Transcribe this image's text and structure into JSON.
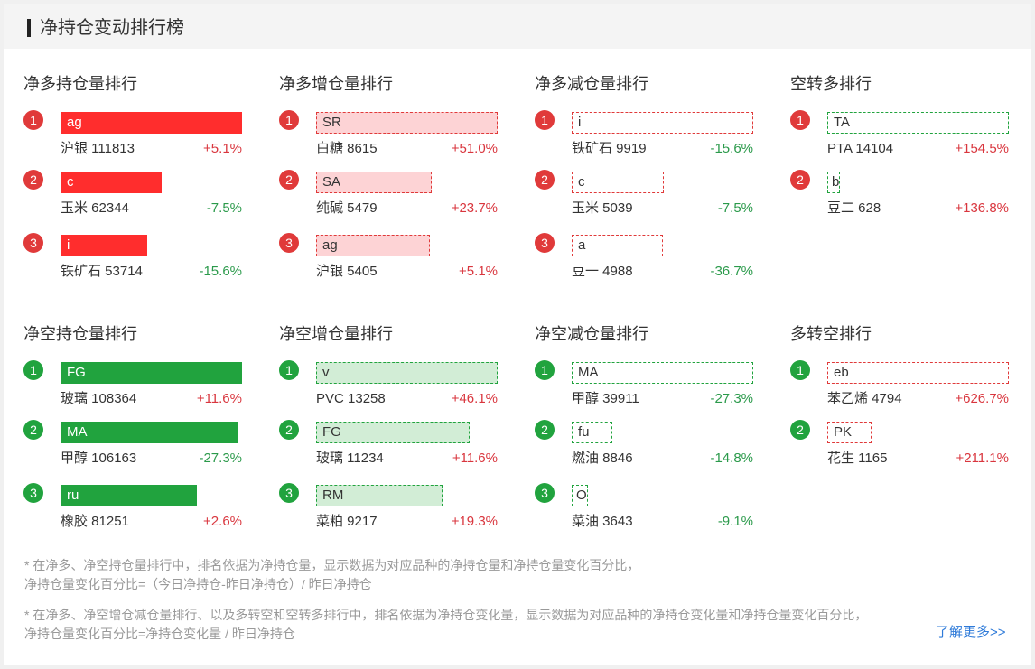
{
  "panel": {
    "title": "净持仓变动排行榜"
  },
  "colors": {
    "up": "#d9363e",
    "down": "#2b9a4b",
    "red_solid": "#ff2d2d",
    "green_solid": "#21a33e",
    "link": "#2f7bd9"
  },
  "sections": [
    {
      "title": "净多持仓量排行",
      "style": "solid-red",
      "badge": "red",
      "items": [
        {
          "rank": "1",
          "code": "ag",
          "name": "沪银 111813",
          "pct": "+5.1%",
          "dir": "pos",
          "bar_ratio": 1.0
        },
        {
          "rank": "2",
          "code": "c",
          "name": "玉米 62344",
          "pct": "-7.5%",
          "dir": "neg",
          "bar_ratio": 0.558
        },
        {
          "rank": "3",
          "code": "i",
          "name": "铁矿石 53714",
          "pct": "-15.6%",
          "dir": "neg",
          "bar_ratio": 0.48
        }
      ]
    },
    {
      "title": "净多增仓量排行",
      "style": "light-red",
      "badge": "red",
      "items": [
        {
          "rank": "1",
          "code": "SR",
          "name": "白糖 8615",
          "pct": "+51.0%",
          "dir": "pos",
          "bar_ratio": 1.0
        },
        {
          "rank": "2",
          "code": "SA",
          "name": "纯碱 5479",
          "pct": "+23.7%",
          "dir": "pos",
          "bar_ratio": 0.636
        },
        {
          "rank": "3",
          "code": "ag",
          "name": "沪银 5405",
          "pct": "+5.1%",
          "dir": "pos",
          "bar_ratio": 0.627
        }
      ]
    },
    {
      "title": "净多减仓量排行",
      "style": "dash-red",
      "badge": "red",
      "items": [
        {
          "rank": "1",
          "code": "i",
          "name": "铁矿石 9919",
          "pct": "-15.6%",
          "dir": "neg",
          "bar_ratio": 1.0
        },
        {
          "rank": "2",
          "code": "c",
          "name": "玉米 5039",
          "pct": "-7.5%",
          "dir": "neg",
          "bar_ratio": 0.508
        },
        {
          "rank": "3",
          "code": "a",
          "name": "豆一 4988",
          "pct": "-36.7%",
          "dir": "neg",
          "bar_ratio": 0.503
        }
      ]
    },
    {
      "title": "空转多排行",
      "style": "dash-green",
      "badge": "red",
      "items": [
        {
          "rank": "1",
          "code": "TA",
          "name": "PTA 14104",
          "pct": "+154.5%",
          "dir": "pos",
          "bar_ratio": 1.0
        },
        {
          "rank": "2",
          "code": "b",
          "name": "豆二 628",
          "pct": "+136.8%",
          "dir": "pos",
          "bar_ratio": 0.045
        }
      ]
    },
    {
      "title": "净空持仓量排行",
      "style": "solid-green",
      "badge": "green",
      "items": [
        {
          "rank": "1",
          "code": "FG",
          "name": "玻璃 108364",
          "pct": "+11.6%",
          "dir": "pos",
          "bar_ratio": 1.0
        },
        {
          "rank": "2",
          "code": "MA",
          "name": "甲醇 106163",
          "pct": "-27.3%",
          "dir": "neg",
          "bar_ratio": 0.98
        },
        {
          "rank": "3",
          "code": "ru",
          "name": "橡胶 81251",
          "pct": "+2.6%",
          "dir": "pos",
          "bar_ratio": 0.75
        }
      ]
    },
    {
      "title": "净空增仓量排行",
      "style": "light-green",
      "badge": "green",
      "items": [
        {
          "rank": "1",
          "code": "v",
          "name": "PVC 13258",
          "pct": "+46.1%",
          "dir": "pos",
          "bar_ratio": 1.0
        },
        {
          "rank": "2",
          "code": "FG",
          "name": "玻璃 11234",
          "pct": "+11.6%",
          "dir": "pos",
          "bar_ratio": 0.847
        },
        {
          "rank": "3",
          "code": "RM",
          "name": "菜粕 9217",
          "pct": "+19.3%",
          "dir": "pos",
          "bar_ratio": 0.695
        }
      ]
    },
    {
      "title": "净空减仓量排行",
      "style": "dash-green",
      "badge": "green",
      "items": [
        {
          "rank": "1",
          "code": "MA",
          "name": "甲醇 39911",
          "pct": "-27.3%",
          "dir": "neg",
          "bar_ratio": 1.0
        },
        {
          "rank": "2",
          "code": "fu",
          "name": "燃油 8846",
          "pct": "-14.8%",
          "dir": "neg",
          "bar_ratio": 0.222
        },
        {
          "rank": "3",
          "code": "OI",
          "name": "菜油 3643",
          "pct": "-9.1%",
          "dir": "neg",
          "bar_ratio": 0.091
        }
      ]
    },
    {
      "title": "多转空排行",
      "style": "dash-red",
      "badge": "green",
      "items": [
        {
          "rank": "1",
          "code": "eb",
          "name": "苯乙烯 4794",
          "pct": "+626.7%",
          "dir": "pos",
          "bar_ratio": 1.0
        },
        {
          "rank": "2",
          "code": "PK",
          "name": "花生 1165",
          "pct": "+211.1%",
          "dir": "pos",
          "bar_ratio": 0.243
        }
      ]
    }
  ],
  "notes": {
    "line1": "* 在净多、净空持仓量排行中，排名依据为净持仓量，显示数据为对应品种的净持仓量和净持仓量变化百分比，",
    "line2": "净持仓量变化百分比=（今日净持仓-昨日净持仓）/ 昨日净持仓",
    "line3": "* 在净多、净空增仓减仓量排行、以及多转空和空转多排行中，排名依据为净持仓变化量，显示数据为对应品种的净持仓变化量和净持仓量变化百分比，",
    "line4": "净持仓量变化百分比=净持仓变化量 / 昨日净持仓"
  },
  "more_link": "了解更多>>"
}
